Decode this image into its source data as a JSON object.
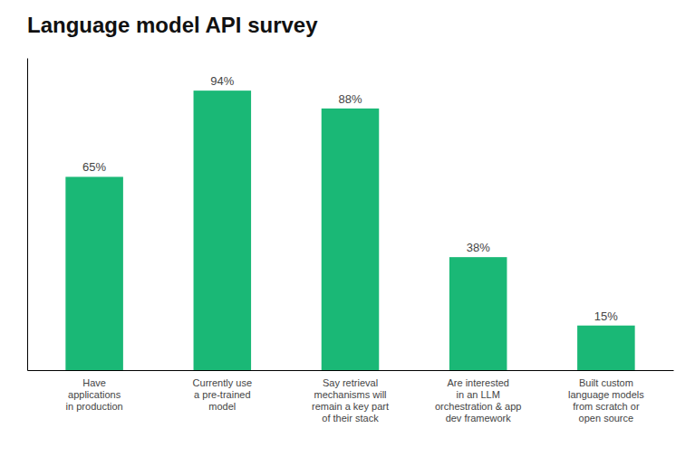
{
  "chart_data": {
    "type": "bar",
    "title": "Language model API survey",
    "categories": [
      "Have\napplications\nin production",
      "Currently use\na pre-trained\nmodel",
      "Say retrieval\nmechanisms will\nremain a key part\nof their stack",
      "Are interested\nin an LLM\norchestration & app\ndev framework",
      "Built custom\nlanguage models\nfrom scratch or\nopen source"
    ],
    "values": [
      65,
      94,
      88,
      38,
      15
    ],
    "value_labels": [
      "65%",
      "94%",
      "88%",
      "38%",
      "15%"
    ],
    "data_labels": true,
    "color": "#1ab876",
    "ylim": [
      0,
      105
    ],
    "grid": false,
    "tick_labels": "x"
  }
}
